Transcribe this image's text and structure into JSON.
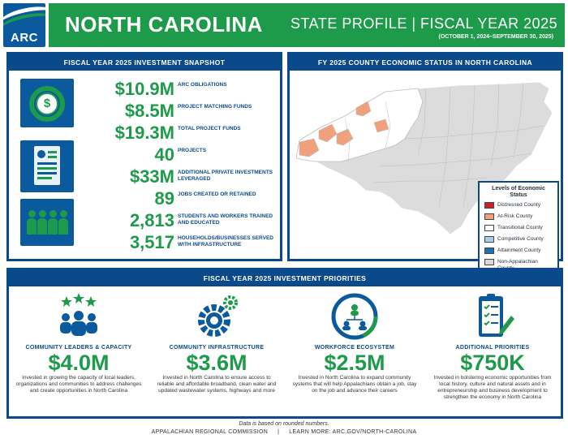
{
  "header": {
    "logo_text": "ARC",
    "state_name": "NORTH CAROLINA",
    "profile_label": "STATE PROFILE  |  FISCAL YEAR 2025",
    "fiscal_dates": "(OCTOBER 1, 2024–SEPTEMBER 30, 2025)"
  },
  "snapshot": {
    "title": "FISCAL YEAR 2025 INVESTMENT SNAPSHOT",
    "icons": [
      "dollar-coin-icon",
      "document-icon",
      "people-icon"
    ],
    "stats": [
      {
        "value": "$10.9M",
        "label": "ARC OBLIGATIONS"
      },
      {
        "value": "$8.5M",
        "label": "PROJECT MATCHING FUNDS"
      },
      {
        "value": "$19.3M",
        "label": "TOTAL PROJECT FUNDS"
      },
      {
        "value": "40",
        "label": "PROJECTS"
      },
      {
        "value": "$33M",
        "label": "ADDITIONAL PRIVATE INVESTMENTS LEVERAGED"
      },
      {
        "value": "89",
        "label": "JOBS CREATED OR RETAINED"
      },
      {
        "value": "2,813",
        "label": "STUDENTS AND WORKERS TRAINED AND EDUCATED"
      },
      {
        "value": "3,517",
        "label": "HOUSEHOLDS/BUSINESSES SERVED WITH INFRASTRUCTURE"
      }
    ]
  },
  "map": {
    "title": "FY 2025 COUNTY ECONOMIC STATUS IN NORTH CAROLINA",
    "legend_title": "Levels of Economic Status",
    "legend": [
      {
        "label": "Distressed County",
        "color": "#c8202f"
      },
      {
        "label": "At-Risk County",
        "color": "#f0a07a"
      },
      {
        "label": "Transitional County",
        "color": "#ffffff"
      },
      {
        "label": "Competitive County",
        "color": "#a9cfe8"
      },
      {
        "label": "Attainment County",
        "color": "#1f6fb5"
      },
      {
        "label": "Non-Appalachian County",
        "color": "#d9d9d9"
      }
    ]
  },
  "priorities": {
    "title": "FISCAL YEAR 2025 INVESTMENT PRIORITIES",
    "items": [
      {
        "icon": "community-leaders-icon",
        "title": "COMMUNITY LEADERS & CAPACITY",
        "amount": "$4.0M",
        "desc": "Invested in growing the capacity of local leaders, organizations and communities to address challenges and create opportunities in North Carolina"
      },
      {
        "icon": "infrastructure-gear-icon",
        "title": "COMMUNITY INFRASTRUCTURE",
        "amount": "$3.6M",
        "desc": "Invested in North Carolina to ensure access to reliable and affordable broadband, clean water and updated wastewater systems, highways and more"
      },
      {
        "icon": "workforce-network-icon",
        "title": "WORKFORCE ECOSYSTEM",
        "amount": "$2.5M",
        "desc": "Invested in North Carolina to expand community systems that will help Appalachians obtain a job, stay on the job and advance their careers"
      },
      {
        "icon": "checklist-clipboard-icon",
        "title": "ADDITIONAL PRIORITIES",
        "amount": "$750K",
        "desc": "Invested in bolstering economic opportunities from local history, culture and natural assets and in entrepreneurship and business development to strengthen the economy in North Carolina"
      }
    ]
  },
  "footer": {
    "note": "Data is based on rounded numbers.",
    "org": "APPALACHIAN REGIONAL COMMISSION",
    "sep": "|",
    "link": "LEARN MORE: ARC.GOV/NORTH-CAROLINA"
  },
  "colors": {
    "brand_green": "#1e9b4a",
    "brand_blue": "#0b4a8a"
  }
}
